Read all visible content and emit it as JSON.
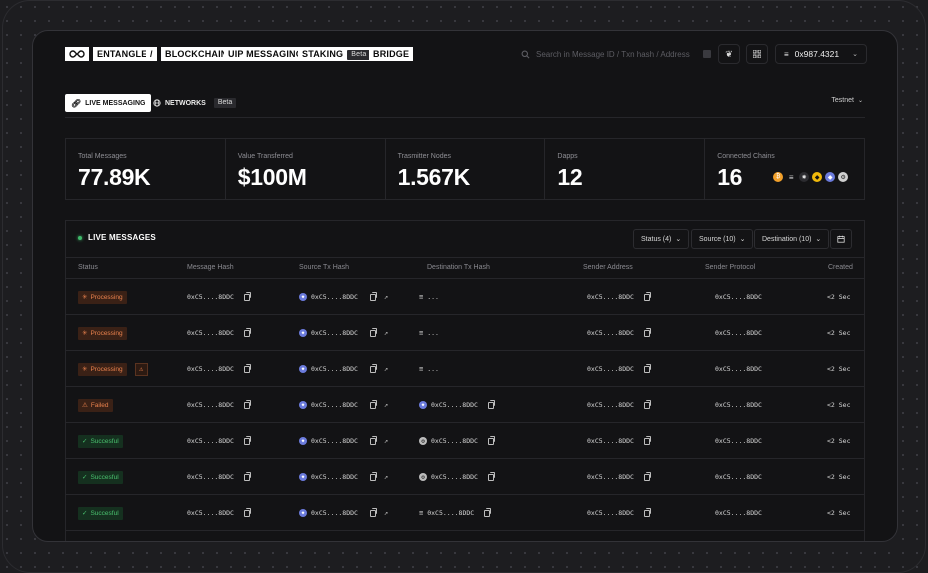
{
  "nav": {
    "items": [
      "ENTANGLE",
      "/",
      "BLOCKCHAIN",
      "UIP MESSAGING",
      "STAKING",
      "BRIDGE"
    ],
    "staking_badge": "Beta",
    "search_placeholder": "Search in Message ID / Txn hash / Address",
    "wallet_address": "0x987.4321"
  },
  "tabs": {
    "live": "LIVE MESSAGING",
    "networks": "NETWORKS",
    "networks_badge": "Beta",
    "network_select": "Testnet"
  },
  "stats": [
    {
      "label": "Total Messages",
      "value": "77.89K"
    },
    {
      "label": "Value Transferred",
      "value": "$100M"
    },
    {
      "label": "Trasmitter Nodes",
      "value": "1.567K"
    },
    {
      "label": "Dapps",
      "value": "12"
    },
    {
      "label": "Connected Chains",
      "value": "16"
    }
  ],
  "connected_chain_icons": [
    "bitcoin-icon",
    "stack-icon",
    "node-icon",
    "binance-icon",
    "ethereum-icon",
    "gear-chain-icon"
  ],
  "panel": {
    "title": "LIVE MESSAGES",
    "filters": [
      "Status (4)",
      "Source (10)",
      "Destination (10)"
    ]
  },
  "table": {
    "headers": [
      "Status",
      "Message Hash",
      "Source Tx Hash",
      "Destination Tx Hash",
      "Sender Address",
      "Sender Protocol",
      "Created"
    ],
    "rows": [
      {
        "status": "Processing",
        "status_type": "processing",
        "warn": false,
        "message_hash": "0xC5....8DDC",
        "source": "0xC5....8DDC",
        "dest": "...",
        "dest_icon": "lines",
        "sender": "0xC5....8DDC",
        "protocol": "0xC5....8DDC",
        "created": "<2 Sec"
      },
      {
        "status": "Processing",
        "status_type": "processing",
        "warn": false,
        "message_hash": "0xC5....8DDC",
        "source": "0xC5....8DDC",
        "dest": "...",
        "dest_icon": "lines",
        "sender": "0xC5....8DDC",
        "protocol": "0xC5....8DDC",
        "created": "<2 Sec"
      },
      {
        "status": "Processing",
        "status_type": "processing",
        "warn": true,
        "message_hash": "0xC5....8DDC",
        "source": "0xC5....8DDC",
        "dest": "...",
        "dest_icon": "lines",
        "sender": "0xC5....8DDC",
        "protocol": "0xC5....8DDC",
        "created": "<2 Sec"
      },
      {
        "status": "Failed",
        "status_type": "failed",
        "warn": false,
        "message_hash": "0xC5....8DDC",
        "source": "0xC5....8DDC",
        "dest": "0xC5....8DDC",
        "dest_icon": "eth",
        "sender": "0xC5....8DDC",
        "protocol": "0xC5....8DDC",
        "created": "<2 Sec"
      },
      {
        "status": "Succesful",
        "status_type": "success",
        "warn": false,
        "message_hash": "0xC5....8DDC",
        "source": "0xC5....8DDC",
        "dest": "0xC5....8DDC",
        "dest_icon": "gear",
        "sender": "0xC5....8DDC",
        "protocol": "0xC5....8DDC",
        "created": "<2 Sec"
      },
      {
        "status": "Succesful",
        "status_type": "success",
        "warn": false,
        "message_hash": "0xC5....8DDC",
        "source": "0xC5....8DDC",
        "dest": "0xC5....8DDC",
        "dest_icon": "gear",
        "sender": "0xC5....8DDC",
        "protocol": "0xC5....8DDC",
        "created": "<2 Sec"
      },
      {
        "status": "Succesful",
        "status_type": "success",
        "warn": false,
        "message_hash": "0xC5....8DDC",
        "source": "0xC5....8DDC",
        "dest": "0xC5....8DDC",
        "dest_icon": "lines",
        "sender": "0xC5....8DDC",
        "protocol": "0xC5....8DDC",
        "created": "<2 Sec"
      }
    ]
  },
  "colors": {
    "processing": "#e8814d",
    "success": "#49c06e",
    "accent": "#ffffff"
  }
}
